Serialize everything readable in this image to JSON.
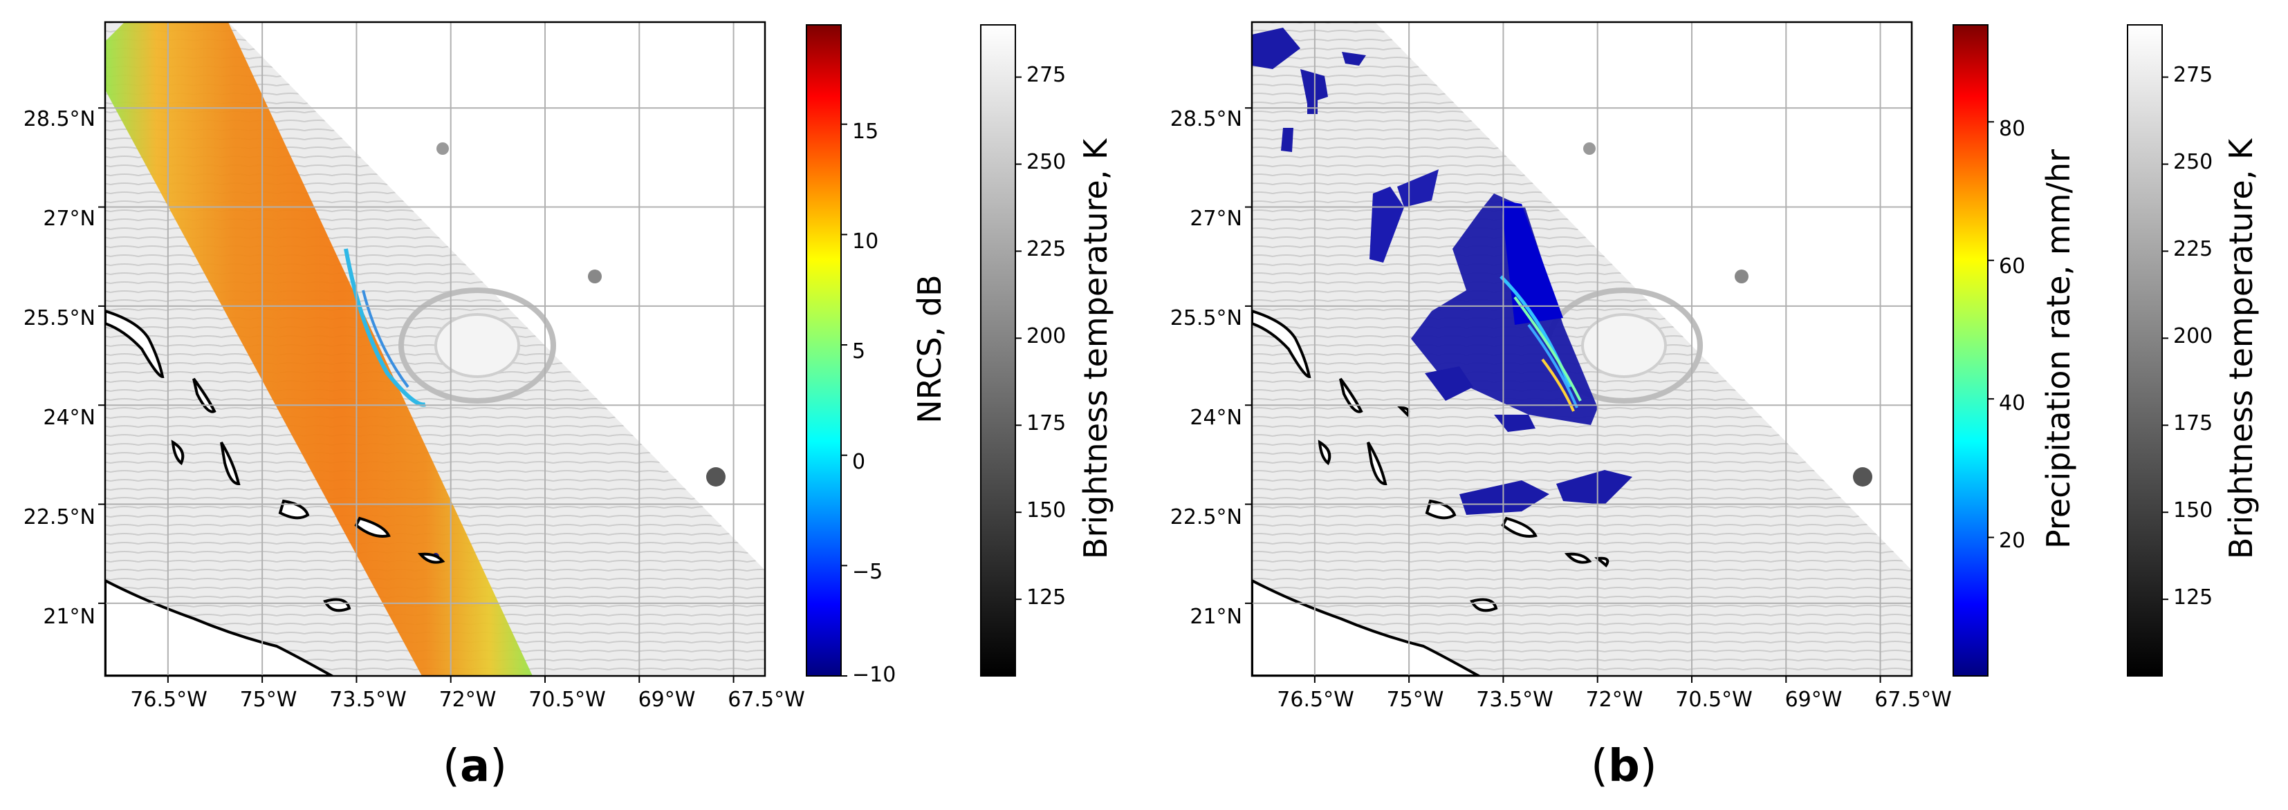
{
  "panels": [
    {
      "id": "a",
      "caption_open": "(",
      "caption_letter": "a",
      "caption_close": ")",
      "lat_labels": [
        "28.5°N",
        "27°N",
        "25.5°N",
        "24°N",
        "22.5°N",
        "21°N"
      ],
      "lon_labels": [
        "76.5°W",
        "75°W",
        "73.5°W",
        "72°W",
        "70.5°W",
        "69°W",
        "67.5°W"
      ],
      "overlay": "NRCS swath",
      "colorbars": [
        {
          "label": "NRCS, dB",
          "colormap": "jet",
          "ticks": [
            "15",
            "10",
            "5",
            "0",
            "−5",
            "−10"
          ],
          "ticks_values": [
            15,
            10,
            5,
            0,
            -5,
            -10
          ],
          "range": [
            -10,
            19.5
          ]
        },
        {
          "label": "Brightness temperature, K",
          "colormap": "gray",
          "ticks": [
            "275",
            "250",
            "225",
            "200",
            "175",
            "150",
            "125"
          ],
          "ticks_values": [
            275,
            250,
            225,
            200,
            175,
            150,
            125
          ],
          "range": [
            103,
            290
          ]
        }
      ]
    },
    {
      "id": "b",
      "caption_open": "(",
      "caption_letter": "b",
      "caption_close": ")",
      "lat_labels": [
        "28.5°N",
        "27°N",
        "25.5°N",
        "24°N",
        "22.5°N",
        "21°N"
      ],
      "lon_labels": [
        "76.5°W",
        "75°W",
        "73.5°W",
        "72°W",
        "70.5°W",
        "69°W",
        "67.5°W"
      ],
      "overlay": "precipitation rain bands",
      "colorbars": [
        {
          "label": "Precipitation rate, mm/hr",
          "colormap": "jet",
          "ticks": [
            "80",
            "60",
            "40",
            "20"
          ],
          "ticks_values": [
            80,
            60,
            40,
            20
          ],
          "range": [
            0,
            94
          ]
        },
        {
          "label": "Brightness temperature, K",
          "colormap": "gray",
          "ticks": [
            "275",
            "250",
            "225",
            "200",
            "175",
            "150",
            "125"
          ],
          "ticks_values": [
            275,
            250,
            225,
            200,
            175,
            150,
            125
          ],
          "range": [
            103,
            290
          ]
        }
      ]
    }
  ],
  "map_extent": {
    "lon": [
      -77.5,
      -67
    ],
    "lat": [
      19.9,
      29.8
    ]
  },
  "gridlines": {
    "lon": [
      -76.5,
      -75,
      -73.5,
      -72,
      -70.5,
      -69,
      -67.5
    ],
    "lat": [
      28.5,
      27,
      25.5,
      24,
      22.5,
      21
    ]
  },
  "colors": {
    "land": "#ffffff",
    "coast": "#000000",
    "grid": "#b0b0b0",
    "background_tb": "#ececec"
  }
}
